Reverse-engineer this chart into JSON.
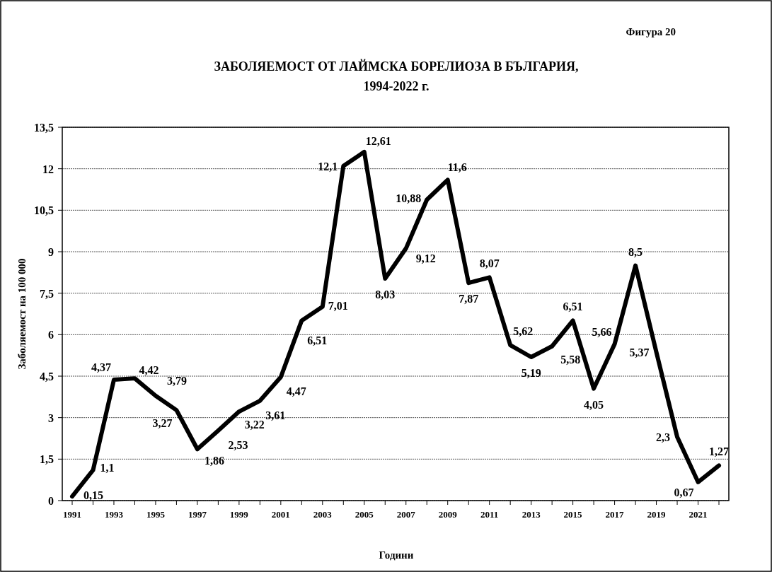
{
  "chart_data": {
    "type": "line",
    "title": "ЗАБОЛЯЕМОСТ  ОТ ЛАЙМСКА  БОРЕЛИОЗА В БЪЛГАРИЯ,\n1994-2022 г.",
    "xlabel": "Години",
    "ylabel": "Заболяемост на 100 000",
    "annotations": [
      "Фигура 20"
    ],
    "categories": [
      "1991",
      null,
      "1993",
      null,
      "1995",
      null,
      "1997",
      null,
      "1999",
      null,
      "2001",
      null,
      "2003",
      null,
      "2005",
      null,
      "2007",
      null,
      "2009",
      null,
      "2011",
      null,
      "2013",
      null,
      "2015",
      null,
      "2017",
      null,
      "2019",
      null,
      "2021",
      null
    ],
    "series": [
      {
        "color": "#000000",
        "values": [
          0.15,
          1.1,
          4.37,
          4.42,
          3.79,
          3.27,
          1.86,
          2.53,
          3.22,
          3.61,
          4.47,
          6.51,
          7.01,
          12.1,
          12.61,
          8.03,
          9.12,
          10.88,
          11.6,
          7.87,
          8.07,
          5.62,
          5.19,
          5.58,
          6.51,
          4.05,
          5.66,
          8.5,
          5.37,
          2.3,
          0.67,
          1.27
        ],
        "value_labels": [
          "0,15",
          "1,1",
          "4,37",
          "4,42",
          "3,79",
          "3,27",
          "1,86",
          "2,53",
          "3,22",
          "3,61",
          "4,47",
          "6,51",
          "7,01",
          "12,1",
          "12,61",
          "8,03",
          "9,12",
          "10,88",
          "11,6",
          "7,87",
          "8,07",
          "5,62",
          "5,19",
          "5,58",
          "6,51",
          "4,05",
          "5,66",
          "8,5",
          "5,37",
          "2,3",
          "0,67",
          "1,27"
        ]
      }
    ],
    "ylim": [
      0,
      13.5
    ],
    "yticks": [
      0,
      {
        "value": 1.5,
        "label": "1,5"
      },
      3,
      {
        "value": 4.5,
        "label": "4,5"
      },
      6,
      {
        "value": 7.5,
        "label": "7,5"
      },
      9,
      {
        "value": 10.5,
        "label": "10,5"
      },
      12,
      {
        "value": 13.5,
        "label": "13,5"
      }
    ],
    "grid": "y",
    "marker": "none",
    "line_style": "solid"
  }
}
